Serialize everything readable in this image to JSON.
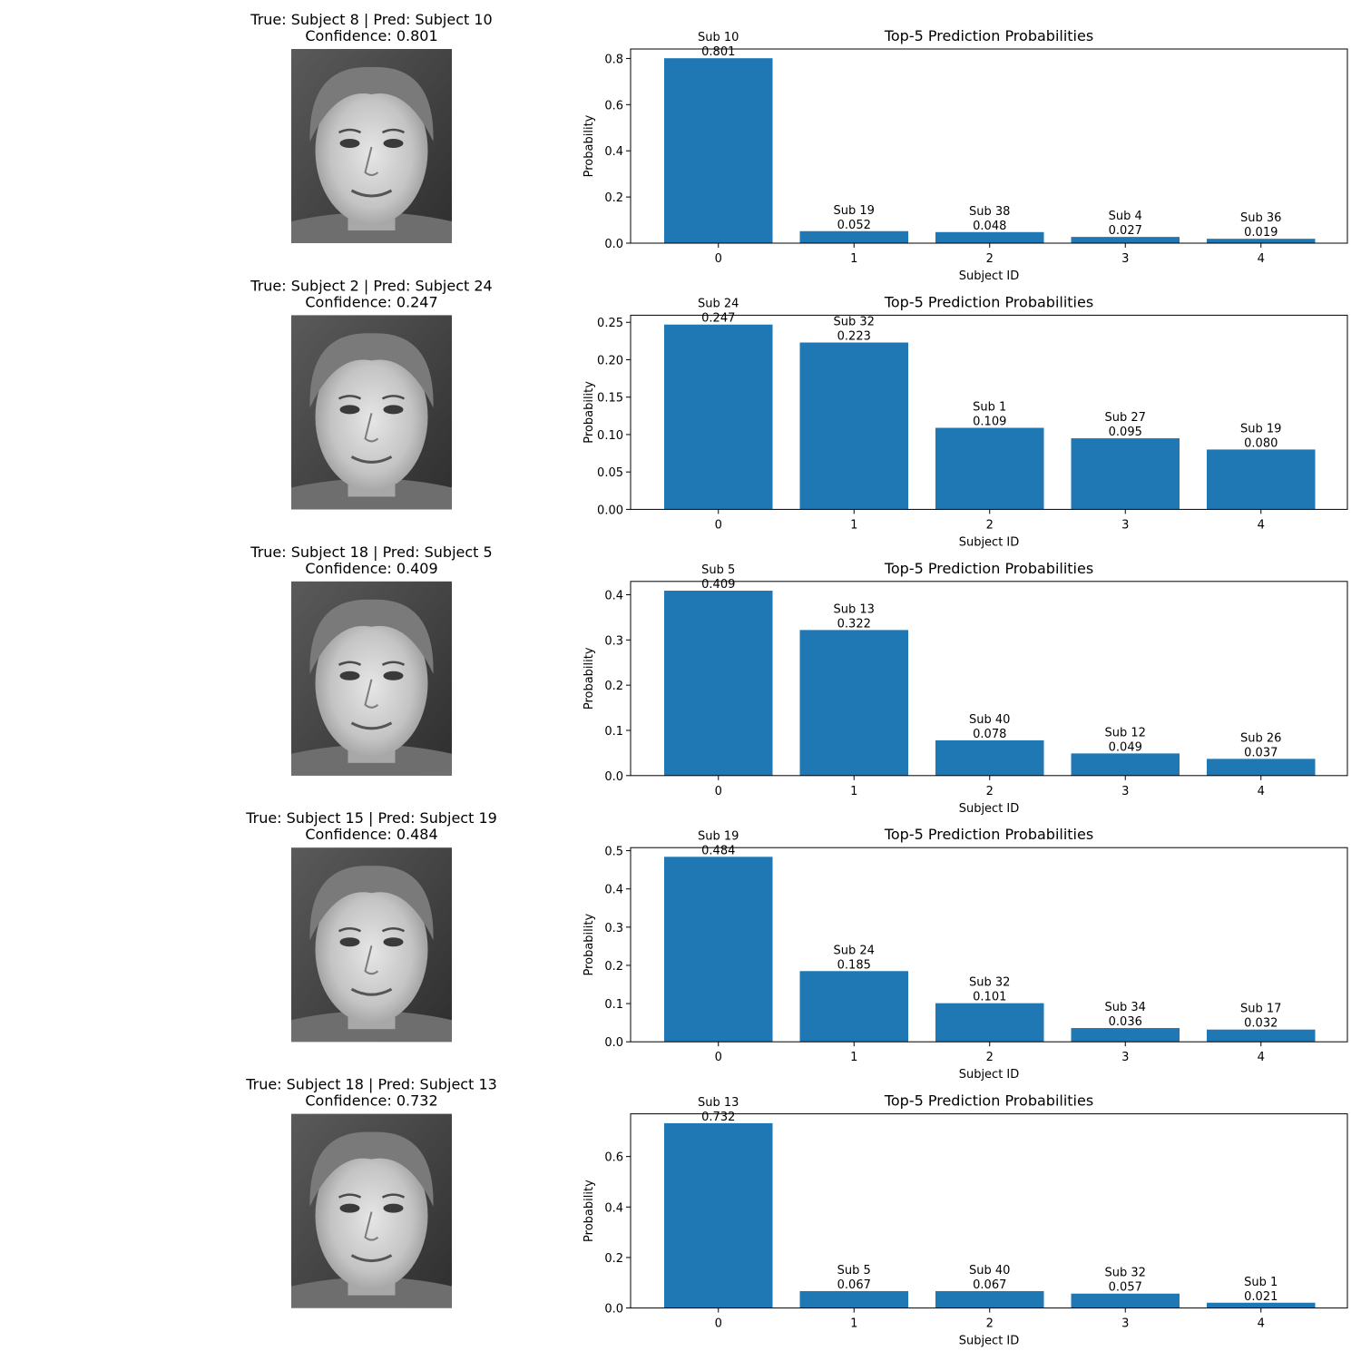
{
  "chart_data": [
    {
      "type": "bar",
      "face_title": "True: Subject 8 | Pred: Subject 10",
      "face_subtitle": "Confidence: 0.801",
      "title": "Top-5 Prediction Probabilities",
      "xlabel": "Subject ID",
      "ylabel": "Probability",
      "categories": [
        "0",
        "1",
        "2",
        "3",
        "4"
      ],
      "values": [
        0.801,
        0.052,
        0.048,
        0.027,
        0.019
      ],
      "bar_labels": [
        "Sub 10",
        "Sub 19",
        "Sub 38",
        "Sub 4",
        "Sub 36"
      ],
      "value_labels": [
        "0.801",
        "0.052",
        "0.048",
        "0.027",
        "0.019"
      ],
      "ylim": [
        0,
        0.841
      ],
      "yticks": [
        0.0,
        0.2,
        0.4,
        0.6,
        0.8
      ],
      "ytick_labels": [
        "0.0",
        "0.2",
        "0.4",
        "0.6",
        "0.8"
      ],
      "bar_color": "#1f77b4",
      "grid": false
    },
    {
      "type": "bar",
      "face_title": "True: Subject 2 | Pred: Subject 24",
      "face_subtitle": "Confidence: 0.247",
      "title": "Top-5 Prediction Probabilities",
      "xlabel": "Subject ID",
      "ylabel": "Probability",
      "categories": [
        "0",
        "1",
        "2",
        "3",
        "4"
      ],
      "values": [
        0.247,
        0.223,
        0.109,
        0.095,
        0.08
      ],
      "bar_labels": [
        "Sub 24",
        "Sub 32",
        "Sub 1",
        "Sub 27",
        "Sub 19"
      ],
      "value_labels": [
        "0.247",
        "0.223",
        "0.109",
        "0.095",
        "0.080"
      ],
      "ylim": [
        0,
        0.2595
      ],
      "yticks": [
        0.0,
        0.05,
        0.1,
        0.15,
        0.2,
        0.25
      ],
      "ytick_labels": [
        "0.00",
        "0.05",
        "0.10",
        "0.15",
        "0.20",
        "0.25"
      ],
      "bar_color": "#1f77b4",
      "grid": false
    },
    {
      "type": "bar",
      "face_title": "True: Subject 18 | Pred: Subject 5",
      "face_subtitle": "Confidence: 0.409",
      "title": "Top-5 Prediction Probabilities",
      "xlabel": "Subject ID",
      "ylabel": "Probability",
      "categories": [
        "0",
        "1",
        "2",
        "3",
        "4"
      ],
      "values": [
        0.409,
        0.322,
        0.078,
        0.049,
        0.037
      ],
      "bar_labels": [
        "Sub 5",
        "Sub 13",
        "Sub 40",
        "Sub 12",
        "Sub 26"
      ],
      "value_labels": [
        "0.409",
        "0.322",
        "0.078",
        "0.049",
        "0.037"
      ],
      "ylim": [
        0,
        0.4295
      ],
      "yticks": [
        0.0,
        0.1,
        0.2,
        0.3,
        0.4
      ],
      "ytick_labels": [
        "0.0",
        "0.1",
        "0.2",
        "0.3",
        "0.4"
      ],
      "bar_color": "#1f77b4",
      "grid": false
    },
    {
      "type": "bar",
      "face_title": "True: Subject 15 | Pred: Subject 19",
      "face_subtitle": "Confidence: 0.484",
      "title": "Top-5 Prediction Probabilities",
      "xlabel": "Subject ID",
      "ylabel": "Probability",
      "categories": [
        "0",
        "1",
        "2",
        "3",
        "4"
      ],
      "values": [
        0.484,
        0.185,
        0.101,
        0.036,
        0.032
      ],
      "bar_labels": [
        "Sub 19",
        "Sub 24",
        "Sub 32",
        "Sub 34",
        "Sub 17"
      ],
      "value_labels": [
        "0.484",
        "0.185",
        "0.101",
        "0.036",
        "0.032"
      ],
      "ylim": [
        0,
        0.508
      ],
      "yticks": [
        0.0,
        0.1,
        0.2,
        0.3,
        0.4,
        0.5
      ],
      "ytick_labels": [
        "0.0",
        "0.1",
        "0.2",
        "0.3",
        "0.4",
        "0.5"
      ],
      "bar_color": "#1f77b4",
      "grid": false
    },
    {
      "type": "bar",
      "face_title": "True: Subject 18 | Pred: Subject 13",
      "face_subtitle": "Confidence: 0.732",
      "title": "Top-5 Prediction Probabilities",
      "xlabel": "Subject ID",
      "ylabel": "Probability",
      "categories": [
        "0",
        "1",
        "2",
        "3",
        "4"
      ],
      "values": [
        0.732,
        0.067,
        0.067,
        0.057,
        0.021
      ],
      "bar_labels": [
        "Sub 13",
        "Sub 5",
        "Sub 40",
        "Sub 32",
        "Sub 1"
      ],
      "value_labels": [
        "0.732",
        "0.067",
        "0.067",
        "0.057",
        "0.021"
      ],
      "ylim": [
        0,
        0.769
      ],
      "yticks": [
        0.0,
        0.2,
        0.4,
        0.6
      ],
      "ytick_labels": [
        "0.0",
        "0.2",
        "0.4",
        "0.6"
      ],
      "bar_color": "#1f77b4",
      "grid": false
    }
  ]
}
